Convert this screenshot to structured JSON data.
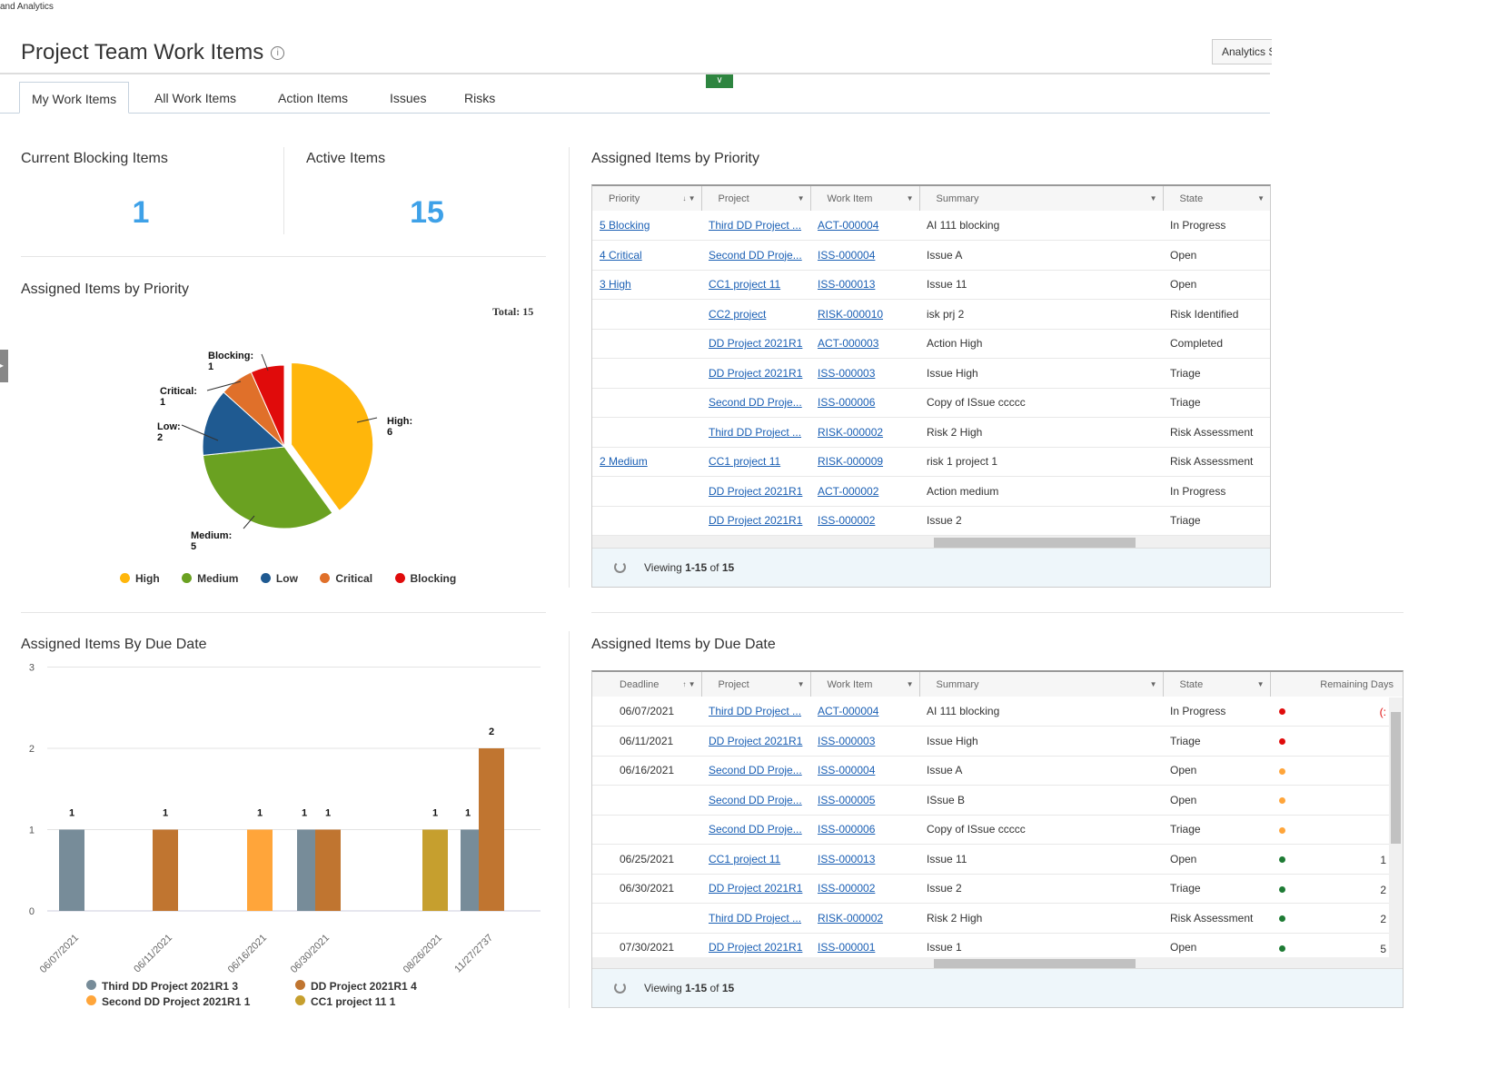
{
  "breadcrumb": "and Analytics",
  "page_title": "Project Team Work Items",
  "analytics_button": "Analytics S",
  "tabs": [
    "My Work Items",
    "All Work Items",
    "Action Items",
    "Issues",
    "Risks"
  ],
  "kpis": {
    "blocking_label": "Current Blocking Items",
    "blocking_value": "1",
    "active_label": "Active Items",
    "active_value": "15"
  },
  "pie_section": {
    "title": "Assigned Items by Priority",
    "total": "Total: 15"
  },
  "bar_section": {
    "title": "Assigned Items By Due Date"
  },
  "chart_data": [
    {
      "type": "pie",
      "title": "Assigned Items by Priority",
      "slices": [
        {
          "label": "High",
          "value": 6,
          "color": "#ffb60b"
        },
        {
          "label": "Medium",
          "value": 5,
          "color": "#6aa121"
        },
        {
          "label": "Low",
          "value": 2,
          "color": "#1f5a91"
        },
        {
          "label": "Critical",
          "value": 1,
          "color": "#e0702a"
        },
        {
          "label": "Blocking",
          "value": 1,
          "color": "#e00b0b"
        }
      ],
      "legend": [
        "High",
        "Medium",
        "Low",
        "Critical",
        "Blocking"
      ],
      "legend_position": "bottom"
    },
    {
      "type": "bar",
      "title": "Assigned Items By Due Date",
      "categories": [
        "06/07/2021",
        "06/11/2021",
        "06/16/2021",
        "06/30/2021",
        "08/26/2021",
        "11/27/2737"
      ],
      "series": [
        {
          "name": "Third DD Project 2021R1",
          "total": "3",
          "color": "#778c99",
          "values": [
            1,
            0,
            0,
            1,
            0,
            1
          ]
        },
        {
          "name": "DD Project 2021R1",
          "total": "4",
          "color": "#c07530",
          "values": [
            0,
            1,
            0,
            1,
            0,
            2
          ]
        },
        {
          "name": "Second DD Project 2021R1",
          "total": "1",
          "color": "#ffa53a",
          "values": [
            0,
            0,
            1,
            0,
            0,
            0
          ]
        },
        {
          "name": "CC1 project 11",
          "total": "1",
          "color": "#c69f2e",
          "values": [
            0,
            0,
            0,
            0,
            1,
            0
          ]
        }
      ],
      "ylim": [
        0,
        3
      ],
      "yticks": [
        "0",
        "1",
        "2",
        "3"
      ],
      "grid": true,
      "legend_position": "bottom"
    }
  ],
  "priority_grid": {
    "title": "Assigned Items by Priority",
    "columns": [
      "Priority",
      "Project",
      "Work Item",
      "Summary",
      "State"
    ],
    "rows": [
      [
        "5 Blocking",
        "Third DD Project ...",
        "ACT-000004",
        "AI 111 blocking",
        "In Progress"
      ],
      [
        "4 Critical",
        "Second DD Proje...",
        "ISS-000004",
        "Issue A",
        "Open"
      ],
      [
        "3 High",
        "CC1 project 11",
        "ISS-000013",
        "Issue 11",
        "Open"
      ],
      [
        "",
        "CC2 project",
        "RISK-000010",
        "isk prj 2",
        "Risk Identified"
      ],
      [
        "",
        "DD Project 2021R1",
        "ACT-000003",
        "Action High",
        "Completed"
      ],
      [
        "",
        "DD Project 2021R1",
        "ISS-000003",
        "Issue High",
        "Triage"
      ],
      [
        "",
        "Second DD Proje...",
        "ISS-000006",
        "Copy of ISsue ccccc",
        "Triage"
      ],
      [
        "",
        "Third DD Project ...",
        "RISK-000002",
        "Risk 2 High",
        "Risk Assessment"
      ],
      [
        "2 Medium",
        "CC1 project 11",
        "RISK-000009",
        "risk 1 project 1",
        "Risk Assessment"
      ],
      [
        "",
        "DD Project 2021R1",
        "ACT-000002",
        "Action medium",
        "In Progress"
      ],
      [
        "",
        "DD Project 2021R1",
        "ISS-000002",
        "Issue 2",
        "Triage"
      ]
    ],
    "footer_prefix": "Viewing ",
    "footer_range": "1-15",
    "footer_of": " of ",
    "footer_total": "15"
  },
  "due_grid": {
    "title": "Assigned Items by Due Date",
    "columns": [
      "Deadline",
      "Project",
      "Work Item",
      "Summary",
      "State",
      "Remaining Days"
    ],
    "rows": [
      [
        "06/07/2021",
        "Third DD Project ...",
        "ACT-000004",
        "AI 111 blocking",
        "In Progress",
        "#e00b0b",
        "(:"
      ],
      [
        "06/11/2021",
        "DD Project 2021R1",
        "ISS-000003",
        "Issue High",
        "Triage",
        "#e00b0b",
        ""
      ],
      [
        "06/16/2021",
        "Second DD Proje...",
        "ISS-000004",
        "Issue A",
        "Open",
        "#ffa53a",
        ""
      ],
      [
        "",
        "Second DD Proje...",
        "ISS-000005",
        "ISsue B",
        "Open",
        "#ffa53a",
        ""
      ],
      [
        "",
        "Second DD Proje...",
        "ISS-000006",
        "Copy of ISsue ccccc",
        "Triage",
        "#ffa53a",
        ""
      ],
      [
        "06/25/2021",
        "CC1 project 11",
        "ISS-000013",
        "Issue 11",
        "Open",
        "#1e7b34",
        "1"
      ],
      [
        "06/30/2021",
        "DD Project 2021R1",
        "ISS-000002",
        "Issue 2",
        "Triage",
        "#1e7b34",
        "2"
      ],
      [
        "",
        "Third DD Project ...",
        "RISK-000002",
        "Risk 2 High",
        "Risk Assessment",
        "#1e7b34",
        "2"
      ],
      [
        "07/30/2021",
        "DD Project 2021R1",
        "ISS-000001",
        "Issue 1",
        "Open",
        "#1e7b34",
        "5"
      ]
    ],
    "footer_prefix": "Viewing ",
    "footer_range": "1-15",
    "footer_of": " of ",
    "footer_total": "15"
  }
}
